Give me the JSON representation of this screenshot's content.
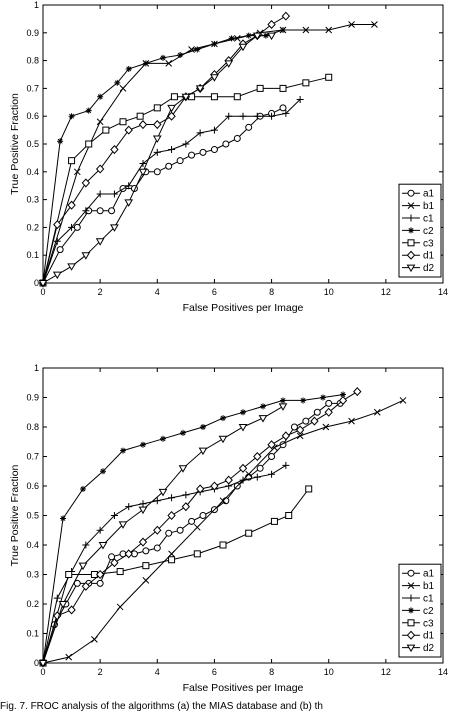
{
  "caption": "Fig. 7. FROC analysis of the algorithms (a) the MIAS database and (b) th",
  "chart_data": [
    {
      "type": "line",
      "xlabel": "False Positives per Image",
      "ylabel": "True Positive Fraction",
      "xlim": [
        0,
        14
      ],
      "ylim": [
        0,
        1
      ],
      "xticks": [
        0,
        2,
        4,
        6,
        8,
        10,
        12,
        14
      ],
      "yticks": [
        0,
        0.1,
        0.2,
        0.3,
        0.4,
        0.5,
        0.6,
        0.7,
        0.8,
        0.9,
        1
      ],
      "grid": false,
      "legend": "right",
      "series": [
        {
          "name": "a1",
          "marker": "circle",
          "x": [
            0,
            0.6,
            1.2,
            1.6,
            2.0,
            2.4,
            2.8,
            3.2,
            3.6,
            4.0,
            4.4,
            4.8,
            5.2,
            5.6,
            6.0,
            6.4,
            6.8,
            7.2,
            7.6,
            8.0,
            8.4
          ],
          "y": [
            0,
            0.12,
            0.2,
            0.26,
            0.26,
            0.26,
            0.34,
            0.34,
            0.4,
            0.4,
            0.42,
            0.44,
            0.46,
            0.47,
            0.48,
            0.5,
            0.52,
            0.56,
            0.6,
            0.61,
            0.63
          ]
        },
        {
          "name": "b1",
          "marker": "x",
          "x": [
            0,
            1.2,
            2.0,
            2.8,
            3.6,
            4.4,
            5.2,
            6.0,
            6.8,
            7.6,
            8.4,
            9.2,
            10.0,
            10.8,
            11.6
          ],
          "y": [
            0,
            0.4,
            0.58,
            0.7,
            0.79,
            0.79,
            0.84,
            0.86,
            0.88,
            0.9,
            0.91,
            0.91,
            0.91,
            0.93,
            0.93
          ]
        },
        {
          "name": "c1",
          "marker": "plus",
          "x": [
            0,
            0.5,
            1.0,
            1.5,
            2.0,
            2.5,
            3.0,
            3.5,
            4.0,
            4.5,
            5.0,
            5.5,
            6.0,
            6.5,
            7.0,
            7.5,
            8.0,
            8.5,
            9.0
          ],
          "y": [
            0,
            0.15,
            0.2,
            0.26,
            0.32,
            0.32,
            0.35,
            0.43,
            0.47,
            0.48,
            0.5,
            0.54,
            0.55,
            0.6,
            0.6,
            0.6,
            0.6,
            0.61,
            0.66
          ]
        },
        {
          "name": "c2",
          "marker": "asterisk",
          "x": [
            0,
            0.6,
            1.0,
            1.6,
            2.0,
            2.6,
            3.0,
            3.6,
            4.2,
            4.8,
            5.4,
            6.0,
            6.6,
            7.2,
            7.8,
            8.4
          ],
          "y": [
            0,
            0.51,
            0.6,
            0.62,
            0.67,
            0.72,
            0.77,
            0.79,
            0.81,
            0.82,
            0.84,
            0.86,
            0.88,
            0.89,
            0.89,
            0.91
          ]
        },
        {
          "name": "c3",
          "marker": "square",
          "x": [
            0,
            1.0,
            1.6,
            2.2,
            2.8,
            3.4,
            4.0,
            4.6,
            5.2,
            6.0,
            6.8,
            7.6,
            8.4,
            9.2,
            10.0
          ],
          "y": [
            0,
            0.44,
            0.5,
            0.55,
            0.58,
            0.6,
            0.63,
            0.67,
            0.67,
            0.67,
            0.67,
            0.7,
            0.7,
            0.72,
            0.74
          ]
        },
        {
          "name": "d1",
          "marker": "diamond",
          "x": [
            0,
            0.5,
            1.0,
            1.5,
            2.0,
            2.5,
            3.0,
            3.5,
            4.0,
            4.5,
            5.0,
            5.5,
            6.0,
            6.5,
            7.0,
            7.5,
            8.0,
            8.5
          ],
          "y": [
            0,
            0.21,
            0.28,
            0.36,
            0.41,
            0.48,
            0.55,
            0.57,
            0.57,
            0.6,
            0.67,
            0.7,
            0.75,
            0.8,
            0.86,
            0.89,
            0.93,
            0.96
          ]
        },
        {
          "name": "d2",
          "marker": "triangle-down",
          "x": [
            0,
            0.5,
            1.0,
            1.5,
            2.0,
            2.5,
            3.0,
            3.5,
            4.0,
            4.5,
            5.0,
            5.5,
            6.0,
            6.5,
            7.0,
            7.5,
            8.0
          ],
          "y": [
            0,
            0.03,
            0.06,
            0.1,
            0.15,
            0.2,
            0.29,
            0.4,
            0.52,
            0.63,
            0.67,
            0.7,
            0.74,
            0.79,
            0.85,
            0.89,
            0.89
          ]
        }
      ]
    },
    {
      "type": "line",
      "xlabel": "False Positives per Image",
      "ylabel": "True Positive Fraction",
      "xlim": [
        0,
        14
      ],
      "ylim": [
        0,
        1
      ],
      "xticks": [
        0,
        2,
        4,
        6,
        8,
        10,
        12,
        14
      ],
      "yticks": [
        0,
        0.1,
        0.2,
        0.3,
        0.4,
        0.5,
        0.6,
        0.7,
        0.8,
        0.9,
        1
      ],
      "grid": false,
      "legend": "right",
      "series": [
        {
          "name": "a1",
          "marker": "circle",
          "x": [
            0,
            0.4,
            0.8,
            1.2,
            1.6,
            2.0,
            2.4,
            2.8,
            3.2,
            3.6,
            4.0,
            4.4,
            4.8,
            5.2,
            5.6,
            6.0,
            6.4,
            6.8,
            7.2,
            7.6,
            8.0,
            8.4,
            8.8,
            9.2,
            9.6,
            10.0,
            10.4
          ],
          "y": [
            0,
            0.13,
            0.2,
            0.27,
            0.27,
            0.27,
            0.36,
            0.37,
            0.37,
            0.38,
            0.39,
            0.44,
            0.45,
            0.48,
            0.5,
            0.52,
            0.55,
            0.6,
            0.63,
            0.66,
            0.7,
            0.74,
            0.8,
            0.82,
            0.85,
            0.88,
            0.88
          ]
        },
        {
          "name": "b1",
          "marker": "x",
          "x": [
            0,
            0.9,
            1.8,
            2.7,
            3.6,
            4.5,
            5.4,
            6.3,
            7.2,
            8.1,
            9.0,
            9.9,
            10.8,
            11.7,
            12.6
          ],
          "y": [
            0,
            0.02,
            0.08,
            0.19,
            0.28,
            0.37,
            0.46,
            0.55,
            0.64,
            0.73,
            0.77,
            0.8,
            0.82,
            0.85,
            0.89
          ]
        },
        {
          "name": "c1",
          "marker": "plus",
          "x": [
            0,
            0.5,
            1.0,
            1.5,
            2.0,
            2.5,
            3.0,
            3.5,
            4.0,
            4.5,
            5.0,
            5.5,
            6.0,
            6.5,
            7.0,
            7.5,
            8.0,
            8.5
          ],
          "y": [
            0,
            0.22,
            0.31,
            0.4,
            0.45,
            0.5,
            0.53,
            0.54,
            0.55,
            0.56,
            0.57,
            0.58,
            0.59,
            0.6,
            0.62,
            0.63,
            0.64,
            0.67
          ]
        },
        {
          "name": "c2",
          "marker": "asterisk",
          "x": [
            0,
            0.7,
            1.4,
            2.1,
            2.8,
            3.5,
            4.2,
            4.9,
            5.6,
            6.3,
            7.0,
            7.7,
            8.4,
            9.1,
            9.8,
            10.5
          ],
          "y": [
            0,
            0.49,
            0.59,
            0.65,
            0.72,
            0.74,
            0.76,
            0.78,
            0.8,
            0.83,
            0.85,
            0.87,
            0.89,
            0.89,
            0.9,
            0.91
          ]
        },
        {
          "name": "c3",
          "marker": "square",
          "x": [
            0,
            0.9,
            1.8,
            2.7,
            3.6,
            4.5,
            5.4,
            6.3,
            7.2,
            8.1,
            8.6,
            9.3
          ],
          "y": [
            0,
            0.3,
            0.3,
            0.31,
            0.33,
            0.35,
            0.37,
            0.4,
            0.44,
            0.48,
            0.5,
            0.59
          ]
        },
        {
          "name": "d1",
          "marker": "diamond",
          "x": [
            0,
            0.5,
            1.0,
            1.5,
            2.0,
            2.5,
            3.0,
            3.5,
            4.0,
            4.5,
            5.0,
            5.5,
            6.0,
            6.5,
            7.0,
            7.5,
            8.0,
            8.5,
            9.0,
            9.5,
            10.0,
            10.5,
            11.0
          ],
          "y": [
            0,
            0.16,
            0.18,
            0.26,
            0.3,
            0.34,
            0.37,
            0.41,
            0.45,
            0.5,
            0.53,
            0.59,
            0.6,
            0.62,
            0.66,
            0.7,
            0.74,
            0.77,
            0.79,
            0.82,
            0.85,
            0.89,
            0.92
          ]
        },
        {
          "name": "d2",
          "marker": "triangle-down",
          "x": [
            0,
            0.7,
            1.4,
            2.1,
            2.8,
            3.5,
            4.2,
            4.9,
            5.6,
            6.3,
            7.0,
            7.7,
            8.4
          ],
          "y": [
            0,
            0.2,
            0.33,
            0.4,
            0.47,
            0.52,
            0.58,
            0.66,
            0.72,
            0.76,
            0.8,
            0.83,
            0.87
          ]
        }
      ]
    }
  ]
}
